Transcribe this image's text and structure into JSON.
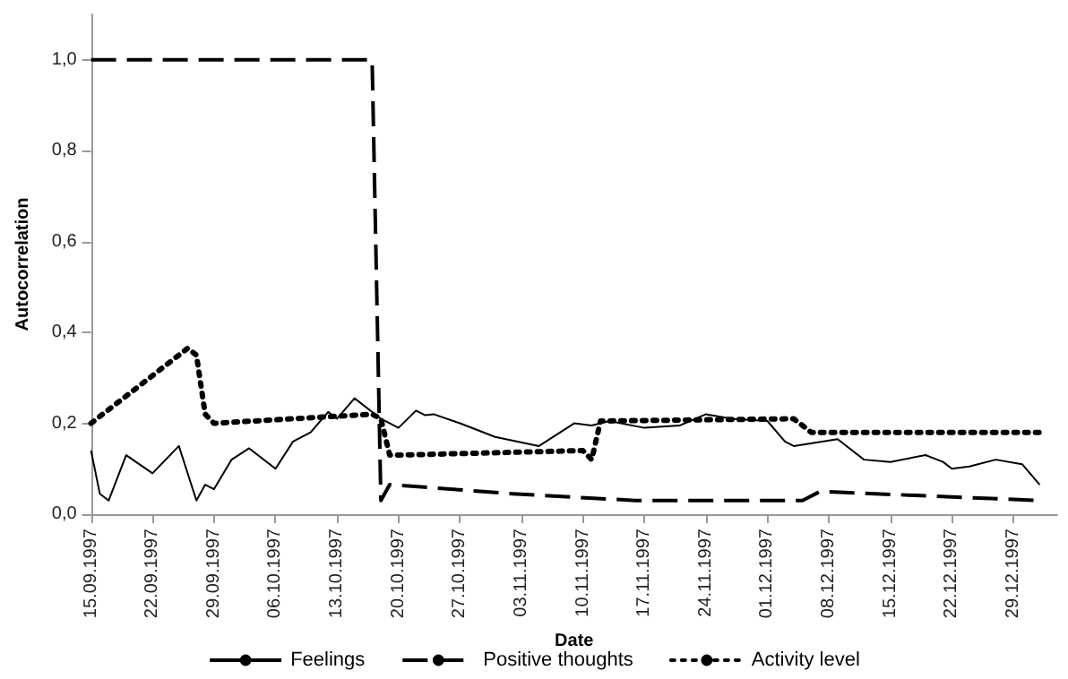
{
  "chart_data": {
    "type": "line",
    "xlabel": "Date",
    "ylabel": "Autocorrelation",
    "legend": "bottom",
    "grid": false,
    "marker": "none",
    "xlim": [
      "1997-09-15",
      "1998-01-03"
    ],
    "xticks": [
      {
        "value": "1997-09-15",
        "label": "15.09.1997"
      },
      {
        "value": "1997-09-22",
        "label": "22.09.1997"
      },
      {
        "value": "1997-09-29",
        "label": "29.09.1997"
      },
      {
        "value": "1997-10-06",
        "label": "06.10.1997"
      },
      {
        "value": "1997-10-13",
        "label": "13.10.1997"
      },
      {
        "value": "1997-10-20",
        "label": "20.10.1997"
      },
      {
        "value": "1997-10-27",
        "label": "27.10.1997"
      },
      {
        "value": "1997-11-03",
        "label": "03.11.1997"
      },
      {
        "value": "1997-11-10",
        "label": "10.11.1997"
      },
      {
        "value": "1997-11-17",
        "label": "17.11.1997"
      },
      {
        "value": "1997-11-24",
        "label": "24.11.1997"
      },
      {
        "value": "1997-12-01",
        "label": "01.12.1997"
      },
      {
        "value": "1997-12-08",
        "label": "08.12.1997"
      },
      {
        "value": "1997-12-15",
        "label": "15.12.1997"
      },
      {
        "value": "1997-12-22",
        "label": "22.12.1997"
      },
      {
        "value": "1997-12-29",
        "label": "29.12.1997"
      }
    ],
    "ylim": [
      0,
      1.1
    ],
    "yticks": [
      {
        "value": 0,
        "label": "0,0"
      },
      {
        "value": 0.2,
        "label": "0,2"
      },
      {
        "value": 0.4,
        "label": "0,4"
      },
      {
        "value": 0.6,
        "label": "0,6"
      },
      {
        "value": 0.8,
        "label": "0,8"
      },
      {
        "value": 1,
        "label": "1,0"
      }
    ],
    "series": [
      {
        "name": "Feelings",
        "color": "#000000",
        "line_style": "solid",
        "x": [
          "1997-09-15",
          "1997-09-16",
          "1997-09-17",
          "1997-09-19",
          "1997-09-22",
          "1997-09-25",
          "1997-09-27",
          "1997-09-28",
          "1997-09-29",
          "1997-10-01",
          "1997-10-03",
          "1997-10-06",
          "1997-10-08",
          "1997-10-10",
          "1997-10-12",
          "1997-10-13",
          "1997-10-15",
          "1997-10-18",
          "1997-10-20",
          "1997-10-22",
          "1997-10-23",
          "1997-10-24",
          "1997-10-27",
          "1997-10-31",
          "1997-11-05",
          "1997-11-09",
          "1997-11-11",
          "1997-11-13",
          "1997-11-17",
          "1997-11-21",
          "1997-11-24",
          "1997-11-27",
          "1997-12-01",
          "1997-12-03",
          "1997-12-04",
          "1997-12-09",
          "1997-12-12",
          "1997-12-15",
          "1997-12-19",
          "1997-12-21",
          "1997-12-22",
          "1997-12-24",
          "1997-12-27",
          "1997-12-30",
          "1998-01-01"
        ],
        "values": [
          0.14,
          0.045,
          0.03,
          0.13,
          0.09,
          0.15,
          0.03,
          0.065,
          0.055,
          0.12,
          0.145,
          0.1,
          0.16,
          0.18,
          0.225,
          0.21,
          0.255,
          0.21,
          0.19,
          0.228,
          0.218,
          0.22,
          0.2,
          0.17,
          0.15,
          0.2,
          0.195,
          0.205,
          0.19,
          0.195,
          0.22,
          0.21,
          0.205,
          0.16,
          0.15,
          0.165,
          0.12,
          0.115,
          0.13,
          0.115,
          0.1,
          0.105,
          0.12,
          0.11,
          0.065
        ]
      },
      {
        "name": "Positive thoughts",
        "color": "#000000",
        "line_style": "dashed",
        "x": [
          "1997-09-15",
          "1997-10-17",
          "1997-10-18",
          "1997-10-19",
          "1997-11-02",
          "1997-11-16",
          "1997-12-05",
          "1997-12-07",
          "1998-01-01"
        ],
        "values": [
          1.0,
          1.0,
          0.03,
          0.065,
          0.045,
          0.03,
          0.03,
          0.05,
          0.03
        ]
      },
      {
        "name": "Activity level",
        "color": "#000000",
        "line_style": "dotted",
        "x": [
          "1997-09-15",
          "1997-09-26",
          "1997-09-27",
          "1997-09-28",
          "1997-09-29",
          "1997-10-17",
          "1997-10-18",
          "1997-10-19",
          "1997-10-20",
          "1997-11-10",
          "1997-11-11",
          "1997-11-12",
          "1997-12-04",
          "1997-12-06",
          "1998-01-01"
        ],
        "values": [
          0.2,
          0.365,
          0.35,
          0.22,
          0.2,
          0.22,
          0.21,
          0.13,
          0.13,
          0.14,
          0.12,
          0.205,
          0.21,
          0.18,
          0.18
        ]
      }
    ]
  }
}
